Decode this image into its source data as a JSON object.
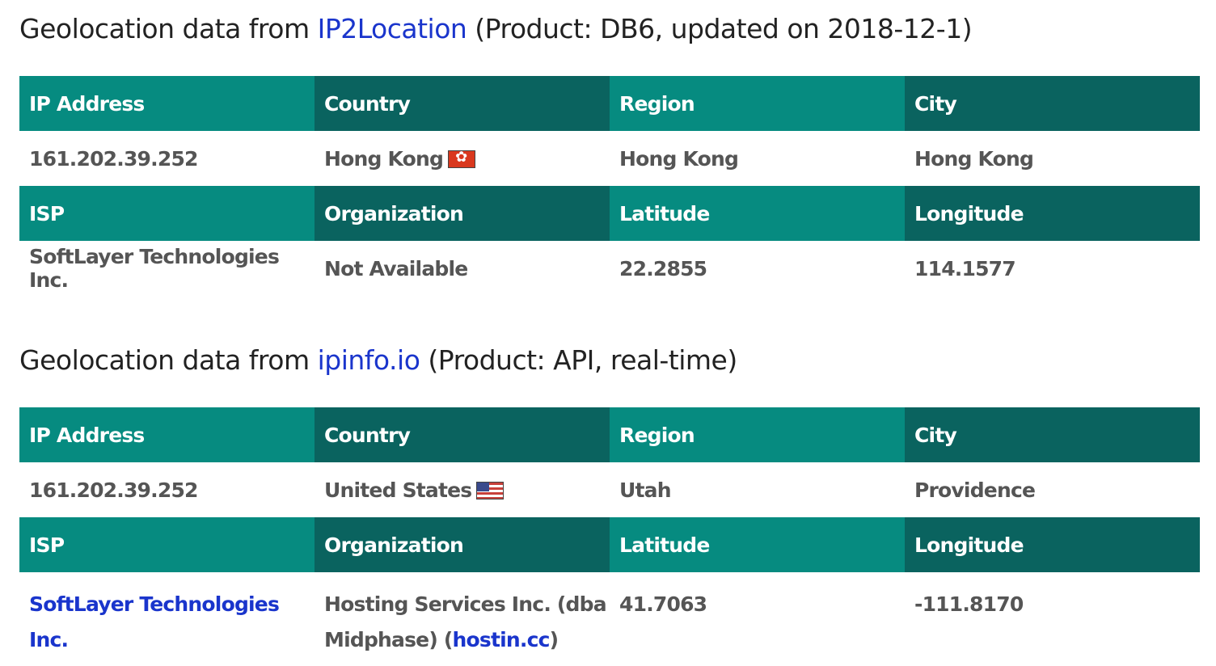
{
  "section1": {
    "heading_prefix": "Geolocation data from ",
    "heading_link": "IP2Location",
    "heading_suffix": " (Product: DB6, updated on 2018-12-1)",
    "headers_row1": [
      "IP Address",
      "Country",
      "Region",
      "City"
    ],
    "ip": "161.202.39.252",
    "country": "Hong Kong",
    "country_flag_icon": "hong-kong-flag-icon",
    "region": "Hong Kong",
    "city": "Hong Kong",
    "headers_row2": [
      "ISP",
      "Organization",
      "Latitude",
      "Longitude"
    ],
    "isp": "SoftLayer Technologies Inc.",
    "organization": "Not Available",
    "latitude": "22.2855",
    "longitude": "114.1577"
  },
  "section2": {
    "heading_prefix": "Geolocation data from ",
    "heading_link": "ipinfo.io",
    "heading_suffix": " (Product: API, real-time)",
    "headers_row1": [
      "IP Address",
      "Country",
      "Region",
      "City"
    ],
    "ip": "161.202.39.252",
    "country": "United States",
    "country_flag_icon": "united-states-flag-icon",
    "region": "Utah",
    "city": "Providence",
    "headers_row2": [
      "ISP",
      "Organization",
      "Latitude",
      "Longitude"
    ],
    "isp": "SoftLayer Technologies Inc.",
    "organization_prefix": "Hosting Services Inc. (dba Midphase) (",
    "organization_link": "hostin.cc",
    "organization_suffix": ")",
    "latitude": "41.7063",
    "longitude": "-111.8170"
  },
  "colors": {
    "header_teal_light": "#068b80",
    "header_teal_dark": "#0a635f",
    "link_blue": "#1a35cc",
    "cell_text": "#555555"
  }
}
